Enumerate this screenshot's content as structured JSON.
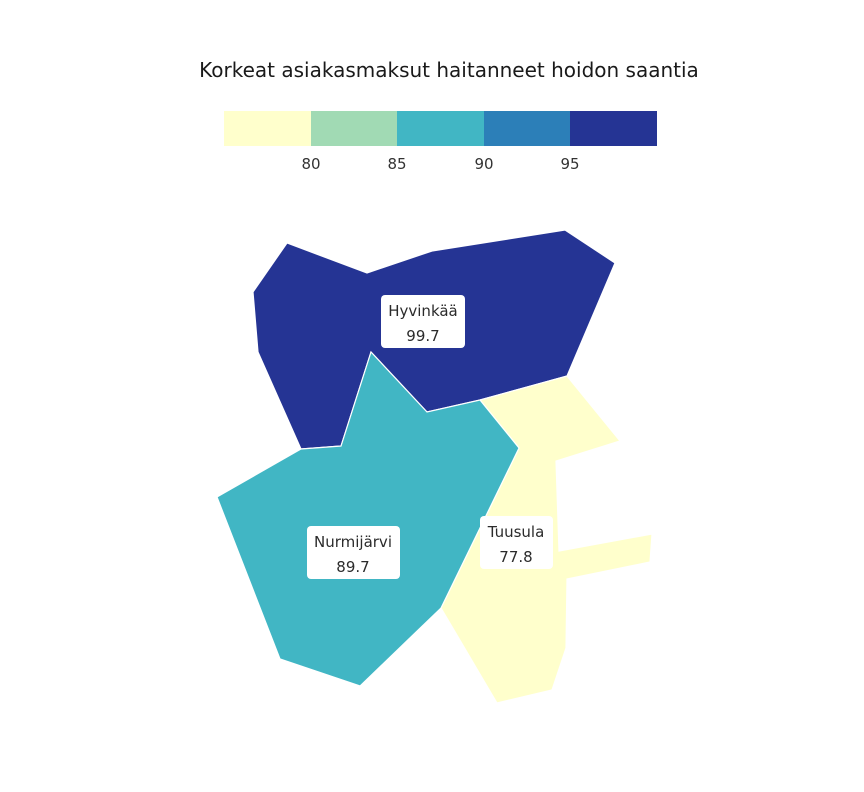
{
  "chart_data": {
    "type": "choropleth",
    "title": "Korkeat asiakasmaksut haitanneet hoidon saantia",
    "legend": {
      "placement": "top",
      "colors": [
        "#ffffcc",
        "#a1dab4",
        "#41b6c4",
        "#2c7fb8",
        "#253494"
      ],
      "breaks": [
        80,
        85,
        90,
        95
      ],
      "tick_labels": [
        "80",
        "85",
        "90",
        "95"
      ]
    },
    "regions": [
      {
        "name": "Hyvinkää",
        "value": 99.7,
        "value_label": "99.7",
        "color": "#253494"
      },
      {
        "name": "Nurmijärvi",
        "value": 89.7,
        "value_label": "89.7",
        "color": "#41b6c4"
      },
      {
        "name": "Tuusula",
        "value": 77.8,
        "value_label": "77.8",
        "color": "#ffffcc"
      }
    ]
  }
}
